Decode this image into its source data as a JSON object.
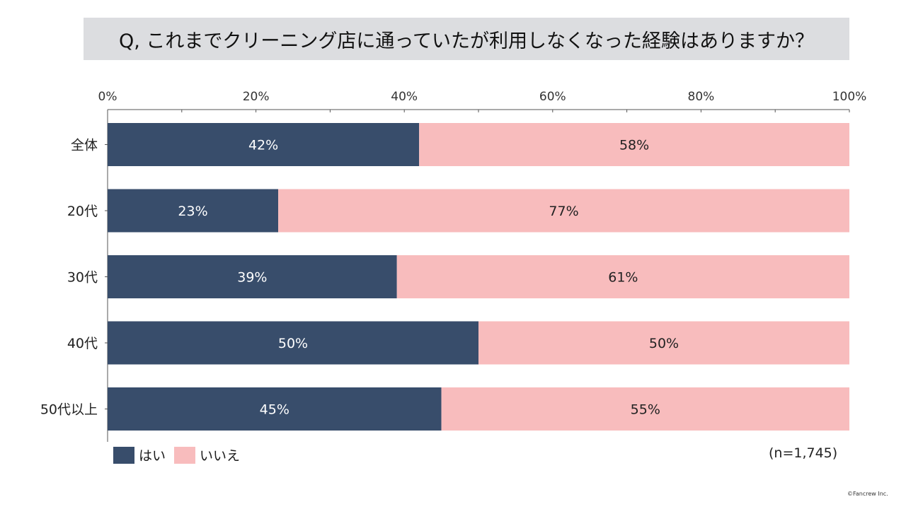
{
  "title": "Q, これまでクリーニング店に通っていたが利用しなくなった経験はありますか？",
  "sample_size": "(n=1,745)",
  "copyright": "©Fancrew Inc.",
  "colors": {
    "yes": "#384d6b",
    "no": "#f8bcbd",
    "axis": "#555555",
    "title_bg": "#dcdde0"
  },
  "chart_data": {
    "type": "bar",
    "orientation": "horizontal",
    "stacked": true,
    "categories": [
      "全体",
      "20代",
      "30代",
      "40代",
      "50代以上"
    ],
    "series": [
      {
        "name": "はい",
        "values": [
          42,
          23,
          39,
          50,
          45
        ],
        "labels": [
          "42%",
          "23%",
          "39%",
          "50%",
          "45%"
        ]
      },
      {
        "name": "いいえ",
        "values": [
          58,
          77,
          61,
          50,
          55
        ],
        "labels": [
          "58%",
          "77%",
          "61%",
          "50%",
          "55%"
        ]
      }
    ],
    "xlim": [
      0,
      100
    ],
    "x_ticks": [
      "0%",
      "20%",
      "40%",
      "60%",
      "80%",
      "100%"
    ],
    "legend": "bottom-left",
    "grid": false
  }
}
